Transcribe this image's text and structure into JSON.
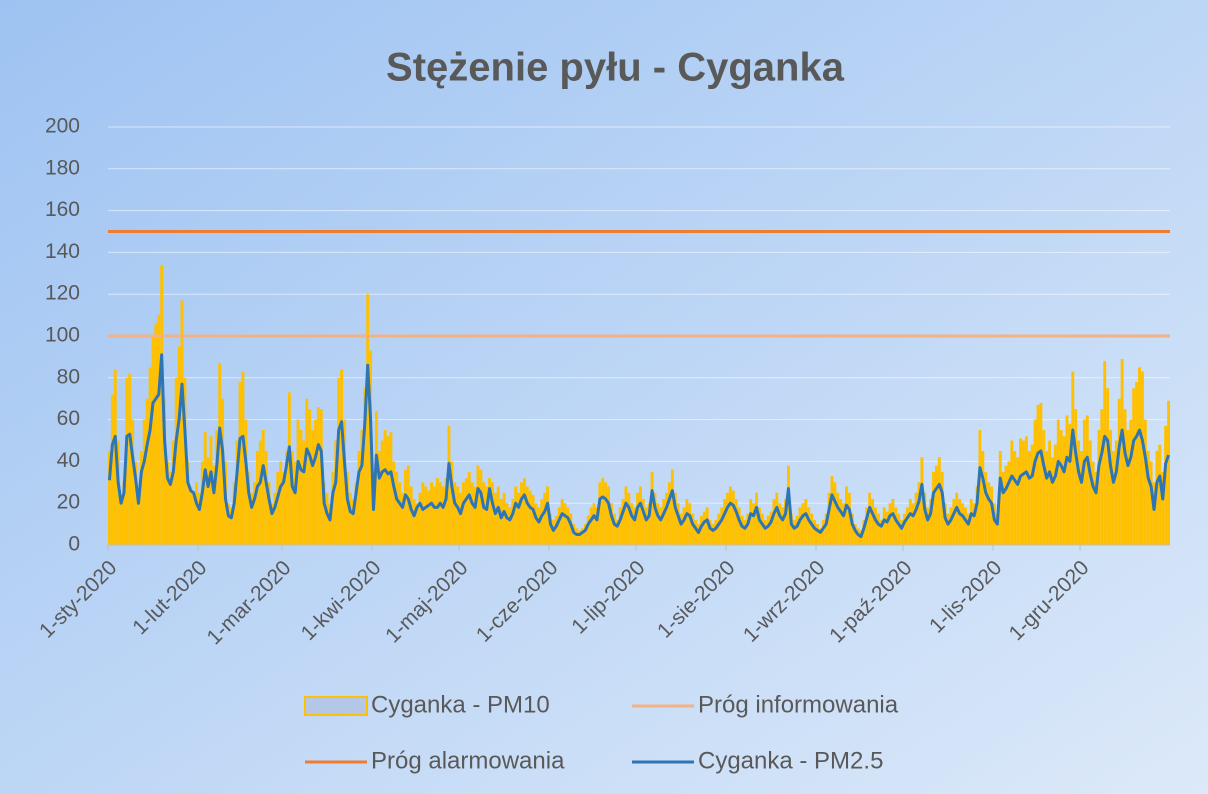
{
  "chart_data": {
    "type": "combo",
    "title": "Stężenie pyłu  - Cyganka",
    "categories": [
      "1-sty-2020",
      null,
      null,
      null,
      null,
      null,
      null,
      null,
      null,
      null,
      null,
      null,
      null,
      null,
      null,
      null,
      null,
      null,
      null,
      null,
      null,
      null,
      null,
      null,
      null,
      null,
      null,
      null,
      null,
      null,
      null,
      "1-lut-2020",
      null,
      null,
      null,
      null,
      null,
      null,
      null,
      null,
      null,
      null,
      null,
      null,
      null,
      null,
      null,
      null,
      null,
      null,
      null,
      null,
      null,
      null,
      null,
      null,
      null,
      null,
      null,
      null,
      "1-mar-2020",
      null,
      null,
      null,
      null,
      null,
      null,
      null,
      null,
      null,
      null,
      null,
      null,
      null,
      null,
      null,
      null,
      null,
      null,
      null,
      null,
      null,
      null,
      null,
      null,
      null,
      null,
      null,
      null,
      null,
      null,
      "1-kwi-2020",
      null,
      null,
      null,
      null,
      null,
      null,
      null,
      null,
      null,
      null,
      null,
      null,
      null,
      null,
      null,
      null,
      null,
      null,
      null,
      null,
      null,
      null,
      null,
      null,
      null,
      null,
      null,
      null,
      null,
      "1-maj-2020",
      null,
      null,
      null,
      null,
      null,
      null,
      null,
      null,
      null,
      null,
      null,
      null,
      null,
      null,
      null,
      null,
      null,
      null,
      null,
      null,
      null,
      null,
      null,
      null,
      null,
      null,
      null,
      null,
      null,
      null,
      "1-cze-2020",
      null,
      null,
      null,
      null,
      null,
      null,
      null,
      null,
      null,
      null,
      null,
      null,
      null,
      null,
      null,
      null,
      null,
      null,
      null,
      null,
      null,
      null,
      null,
      null,
      null,
      null,
      null,
      null,
      null,
      "1-lip-2020",
      null,
      null,
      null,
      null,
      null,
      null,
      null,
      null,
      null,
      null,
      null,
      null,
      null,
      null,
      null,
      null,
      null,
      null,
      null,
      null,
      null,
      null,
      null,
      null,
      null,
      null,
      null,
      null,
      null,
      null,
      "1-sie-2020",
      null,
      null,
      null,
      null,
      null,
      null,
      null,
      null,
      null,
      null,
      null,
      null,
      null,
      null,
      null,
      null,
      null,
      null,
      null,
      null,
      null,
      null,
      null,
      null,
      null,
      null,
      null,
      null,
      null,
      null,
      "1-wrz-2020",
      null,
      null,
      null,
      null,
      null,
      null,
      null,
      null,
      null,
      null,
      null,
      null,
      null,
      null,
      null,
      null,
      null,
      null,
      null,
      null,
      null,
      null,
      null,
      null,
      null,
      null,
      null,
      null,
      null,
      "1-paź-2020",
      null,
      null,
      null,
      null,
      null,
      null,
      null,
      null,
      null,
      null,
      null,
      null,
      null,
      null,
      null,
      null,
      null,
      null,
      null,
      null,
      null,
      null,
      null,
      null,
      null,
      null,
      null,
      null,
      null,
      null,
      "1-lis-2020",
      null,
      null,
      null,
      null,
      null,
      null,
      null,
      null,
      null,
      null,
      null,
      null,
      null,
      null,
      null,
      null,
      null,
      null,
      null,
      null,
      null,
      null,
      null,
      null,
      null,
      null,
      null,
      null,
      null,
      "1-gru-2020",
      null,
      null,
      null,
      null,
      null,
      null,
      null,
      null,
      null,
      null,
      null,
      null,
      null,
      null,
      null,
      null,
      null,
      null,
      null,
      null,
      null,
      null,
      null,
      null,
      null,
      null,
      null,
      null,
      null,
      null
    ],
    "series": [
      {
        "name": "Cyganka - PM10",
        "kind": "bar",
        "color": "#ffc000",
        "values": [
          45,
          72,
          84,
          50,
          22,
          30,
          80,
          82,
          60,
          40,
          25,
          45,
          60,
          70,
          85,
          100,
          106,
          110,
          134,
          70,
          40,
          35,
          50,
          80,
          95,
          117,
          80,
          40,
          28,
          25,
          30,
          25,
          40,
          54,
          42,
          52,
          38,
          55,
          87,
          70,
          40,
          20,
          18,
          30,
          50,
          78,
          83,
          60,
          35,
          25,
          30,
          45,
          50,
          55,
          45,
          30,
          20,
          25,
          35,
          40,
          35,
          45,
          73,
          45,
          40,
          60,
          55,
          50,
          70,
          65,
          55,
          60,
          66,
          65,
          30,
          25,
          20,
          35,
          50,
          80,
          84,
          60,
          35,
          25,
          22,
          30,
          45,
          55,
          75,
          120,
          93,
          30,
          64,
          45,
          50,
          55,
          52,
          54,
          40,
          35,
          30,
          25,
          36,
          38,
          28,
          22,
          20,
          25,
          30,
          28,
          26,
          30,
          28,
          32,
          30,
          28,
          32,
          57,
          40,
          30,
          28,
          25,
          30,
          32,
          35,
          30,
          28,
          38,
          36,
          30,
          28,
          32,
          30,
          25,
          28,
          22,
          25,
          20,
          18,
          22,
          28,
          25,
          30,
          32,
          28,
          26,
          24,
          20,
          18,
          22,
          25,
          28,
          15,
          12,
          14,
          18,
          22,
          20,
          18,
          15,
          10,
          8,
          7,
          8,
          10,
          14,
          18,
          20,
          18,
          30,
          32,
          30,
          28,
          20,
          15,
          12,
          18,
          22,
          28,
          25,
          20,
          18,
          25,
          28,
          22,
          18,
          20,
          35,
          25,
          20,
          18,
          22,
          25,
          30,
          36,
          25,
          20,
          15,
          18,
          22,
          20,
          15,
          12,
          10,
          14,
          16,
          18,
          12,
          10,
          12,
          15,
          18,
          22,
          25,
          28,
          26,
          22,
          18,
          14,
          12,
          15,
          22,
          20,
          25,
          18,
          15,
          12,
          14,
          16,
          22,
          25,
          20,
          18,
          22,
          38,
          15,
          12,
          14,
          18,
          20,
          22,
          18,
          15,
          12,
          10,
          8,
          12,
          15,
          25,
          33,
          30,
          25,
          22,
          20,
          28,
          25,
          15,
          10,
          8,
          7,
          12,
          18,
          25,
          22,
          18,
          15,
          12,
          18,
          16,
          20,
          22,
          18,
          15,
          12,
          15,
          18,
          22,
          20,
          25,
          30,
          42,
          25,
          18,
          22,
          35,
          38,
          42,
          35,
          20,
          15,
          18,
          22,
          25,
          22,
          20,
          18,
          15,
          22,
          20,
          28,
          55,
          45,
          35,
          30,
          28,
          20,
          15,
          45,
          35,
          38,
          40,
          50,
          45,
          42,
          51,
          50,
          52,
          45,
          48,
          60,
          67,
          68,
          55,
          45,
          50,
          42,
          48,
          60,
          55,
          52,
          62,
          58,
          83,
          65,
          50,
          45,
          60,
          62,
          50,
          40,
          35,
          55,
          65,
          88,
          75,
          55,
          45,
          50,
          70,
          89,
          65,
          55,
          60,
          75,
          78,
          85,
          83,
          60,
          45,
          40,
          30,
          45,
          48,
          35,
          57,
          69
        ]
      },
      {
        "name": "Próg informowania",
        "kind": "hline",
        "color": "#f4b183",
        "value": 100
      },
      {
        "name": "Próg alarmowania",
        "kind": "hline",
        "color": "#ed7d31",
        "value": 150
      },
      {
        "name": "Cyganka - PM2.5",
        "kind": "line",
        "color": "#2e75b6",
        "values": [
          31,
          48,
          52,
          30,
          20,
          25,
          52,
          53,
          42,
          32,
          20,
          35,
          40,
          48,
          55,
          68,
          70,
          72,
          91,
          50,
          32,
          29,
          35,
          50,
          60,
          77,
          55,
          30,
          26,
          25,
          20,
          17,
          25,
          36,
          28,
          35,
          25,
          38,
          56,
          45,
          22,
          14,
          13,
          20,
          35,
          51,
          52,
          40,
          25,
          18,
          22,
          28,
          30,
          38,
          30,
          22,
          15,
          18,
          23,
          28,
          30,
          38,
          47,
          28,
          25,
          40,
          36,
          35,
          46,
          43,
          38,
          42,
          48,
          45,
          20,
          15,
          12,
          25,
          30,
          55,
          59,
          40,
          22,
          16,
          15,
          25,
          35,
          38,
          58,
          86,
          60,
          17,
          43,
          32,
          35,
          36,
          34,
          35,
          28,
          22,
          20,
          18,
          24,
          22,
          17,
          14,
          18,
          20,
          17,
          18,
          19,
          20,
          18,
          18,
          20,
          18,
          22,
          39,
          28,
          20,
          18,
          15,
          20,
          22,
          24,
          20,
          18,
          27,
          25,
          18,
          17,
          27,
          20,
          15,
          18,
          13,
          16,
          13,
          12,
          15,
          20,
          18,
          22,
          24,
          20,
          18,
          17,
          13,
          11,
          14,
          16,
          20,
          10,
          7,
          9,
          12,
          15,
          14,
          13,
          10,
          6,
          5,
          5,
          6,
          7,
          10,
          12,
          14,
          12,
          22,
          23,
          22,
          20,
          14,
          10,
          9,
          12,
          16,
          20,
          18,
          14,
          12,
          18,
          20,
          16,
          12,
          14,
          26,
          18,
          14,
          12,
          15,
          18,
          22,
          26,
          18,
          14,
          10,
          12,
          15,
          14,
          10,
          8,
          6,
          9,
          11,
          12,
          8,
          7,
          8,
          10,
          12,
          15,
          18,
          20,
          19,
          16,
          12,
          9,
          8,
          10,
          15,
          14,
          18,
          12,
          10,
          8,
          9,
          11,
          15,
          18,
          14,
          12,
          15,
          27,
          10,
          8,
          9,
          12,
          14,
          15,
          12,
          10,
          8,
          7,
          6,
          8,
          10,
          17,
          24,
          21,
          18,
          16,
          14,
          19,
          17,
          10,
          7,
          5,
          4,
          8,
          13,
          18,
          15,
          12,
          10,
          9,
          12,
          11,
          14,
          15,
          12,
          10,
          8,
          11,
          13,
          15,
          14,
          17,
          21,
          29,
          17,
          12,
          15,
          25,
          27,
          29,
          25,
          13,
          10,
          12,
          15,
          18,
          15,
          14,
          12,
          10,
          15,
          14,
          20,
          37,
          32,
          25,
          22,
          20,
          12,
          10,
          32,
          25,
          27,
          30,
          33,
          31,
          29,
          33,
          34,
          35,
          32,
          33,
          40,
          44,
          45,
          38,
          32,
          35,
          30,
          33,
          40,
          38,
          35,
          42,
          40,
          55,
          44,
          35,
          30,
          40,
          42,
          34,
          28,
          25,
          38,
          44,
          52,
          50,
          38,
          30,
          35,
          47,
          55,
          44,
          38,
          42,
          50,
          52,
          55,
          50,
          42,
          32,
          28,
          17,
          30,
          33,
          22,
          39,
          43
        ]
      }
    ],
    "ylim": [
      0,
      200
    ],
    "yticks": [
      0,
      20,
      40,
      60,
      80,
      100,
      120,
      140,
      160,
      180,
      200
    ],
    "grid": true
  }
}
